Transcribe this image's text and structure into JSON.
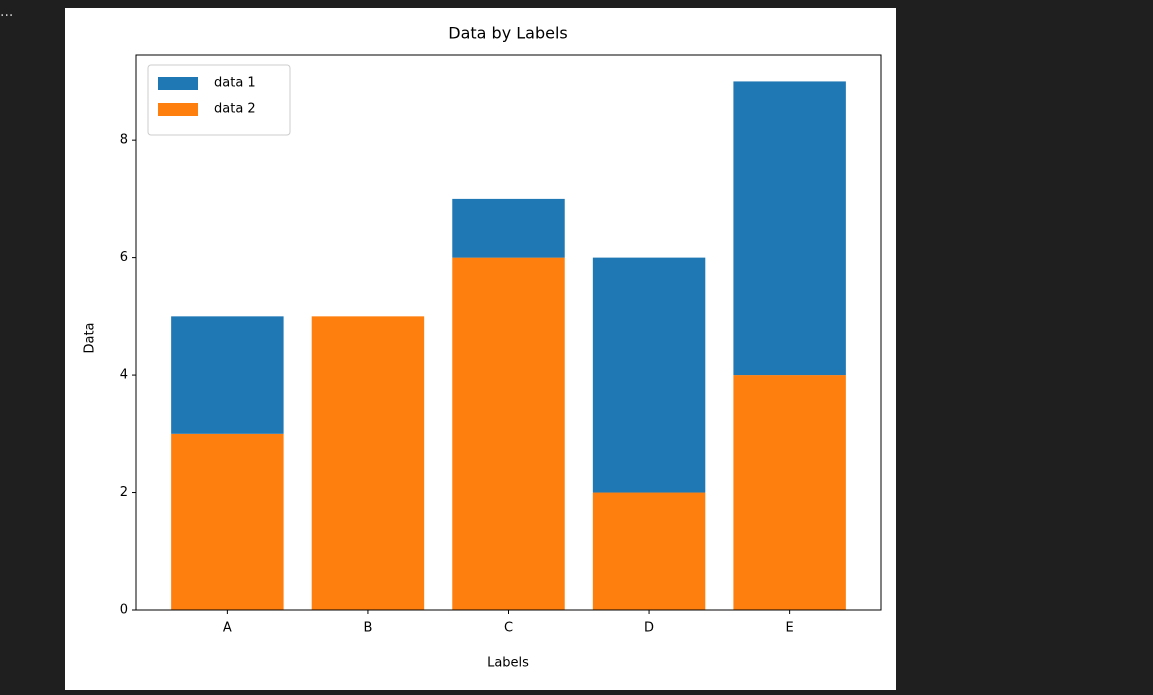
{
  "output_marker": "...",
  "chart_data": {
    "type": "bar",
    "stacked": true,
    "title": "Data by Labels",
    "x_label": "Labels",
    "y_label": "Data",
    "categories": [
      "A",
      "B",
      "C",
      "D",
      "E"
    ],
    "series": [
      {
        "name": "data 1",
        "color": "#1f77b4",
        "values": [
          2,
          0,
          1,
          4,
          5
        ]
      },
      {
        "name": "data 2",
        "color": "#ff7f0e",
        "values": [
          3,
          5,
          6,
          2,
          4
        ]
      }
    ],
    "ylim": [
      0,
      9.45
    ],
    "yticks": [
      0,
      2,
      4,
      6,
      8
    ],
    "legend": "upper left",
    "grid": false
  }
}
